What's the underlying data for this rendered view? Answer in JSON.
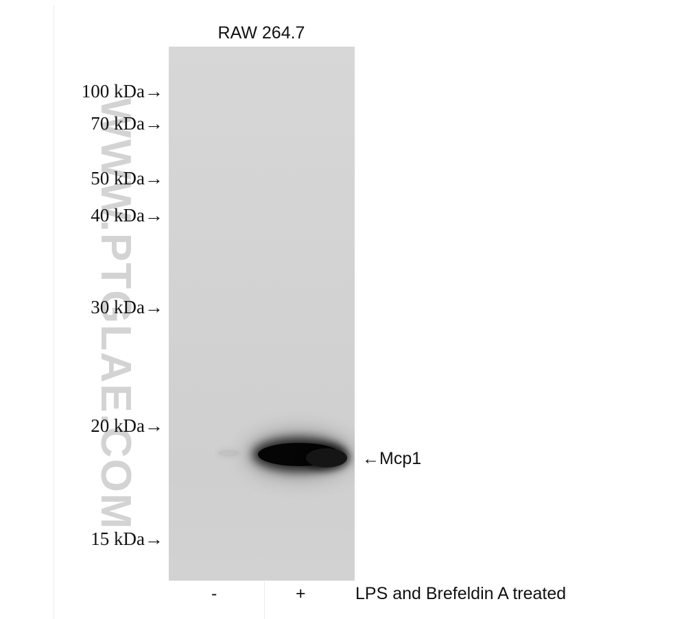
{
  "cell_line": "RAW 264.7",
  "markers": [
    {
      "label": "100 kDa→"
    },
    {
      "label": "70 kDa→"
    },
    {
      "label": "50 kDa→"
    },
    {
      "label": "40 kDa→"
    },
    {
      "label": "30 kDa→"
    },
    {
      "label": "20 kDa→"
    },
    {
      "label": "15 kDa→"
    }
  ],
  "target": "←Mcp1",
  "lanes": [
    {
      "sign": "-"
    },
    {
      "sign": "+"
    }
  ],
  "treatment": "LPS and Brefeldin A treated",
  "watermark": "WWW.PTGLAE.COM",
  "colors": {
    "membrane": "#d4d4d4",
    "band": "#050505",
    "watermark": "#afafaf"
  }
}
